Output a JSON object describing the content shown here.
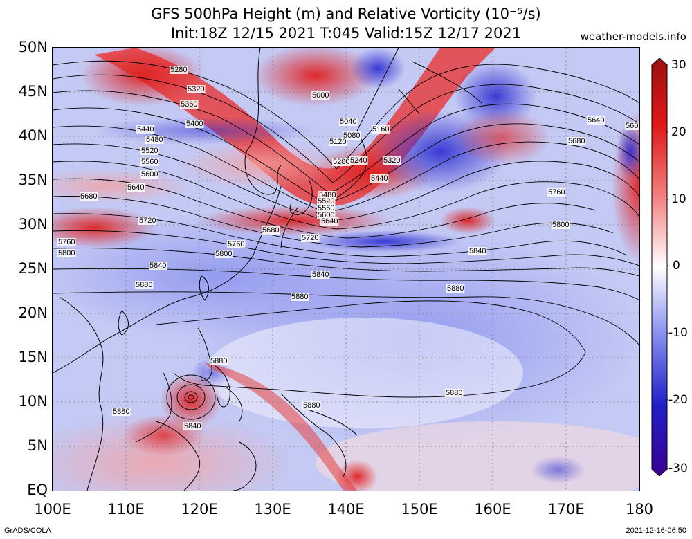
{
  "title": {
    "line1": "GFS 500hPa Height (m) and Relative Vorticity (10⁻⁵/s)",
    "line2": "Init:18Z 12/15 2021 T:045 Valid:15Z 12/17 2021"
  },
  "credit": "weather-models.info",
  "lat_labels": [
    "50N",
    "45N",
    "40N",
    "35N",
    "30N",
    "25N",
    "20N",
    "15N",
    "10N",
    "5N",
    "EQ"
  ],
  "lon_labels": [
    "100E",
    "110E",
    "120E",
    "130E",
    "140E",
    "150E",
    "160E",
    "170E",
    "180"
  ],
  "colorbar": {
    "ticks": [
      "30",
      "20",
      "10",
      "0",
      "-10",
      "-20",
      "-30"
    ],
    "colors": [
      "#9a1010",
      "#e01818",
      "#f28080",
      "#ffffff",
      "#8890ee",
      "#2020c8",
      "#3a0090"
    ]
  },
  "contour_labels": [
    "5280",
    "5320",
    "5360",
    "5400",
    "5440",
    "5480",
    "5520",
    "5560",
    "5600",
    "5640",
    "5680",
    "5720",
    "5760",
    "5800",
    "5840",
    "5880",
    "5000",
    "5040",
    "5080",
    "5120",
    "5160",
    "5200",
    "5240",
    "5320",
    "5440",
    "5480",
    "5520",
    "5560",
    "5600",
    "5640",
    "5680",
    "5720",
    "5760",
    "5800",
    "5840",
    "5880",
    "5640",
    "5680",
    "560",
    "5760",
    "5800",
    "5840",
    "5880",
    "5880",
    "5880",
    "5880",
    "5840",
    "5880"
  ],
  "footer": {
    "left": "GrADS/COLA",
    "right": "2021-12-16-06:50"
  }
}
